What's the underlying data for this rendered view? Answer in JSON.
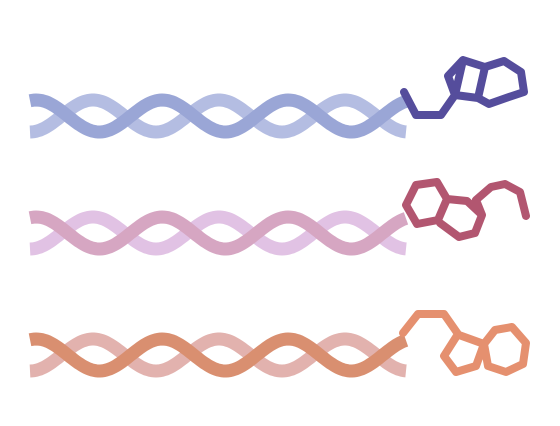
{
  "illustration": {
    "rows": [
      {
        "name": "blue",
        "strand_front_color": "#9aa6d6",
        "strand_back_color": "#b4bde2",
        "molecule_color": "#554d9c",
        "molecule_icon": "indole-icon"
      },
      {
        "name": "pink",
        "strand_front_color": "#d6a6c2",
        "strand_back_color": "#e1c2e4",
        "molecule_color": "#b25670",
        "molecule_icon": "indole-icon"
      },
      {
        "name": "orange",
        "strand_front_color": "#d98f70",
        "strand_back_color": "#e2b2ae",
        "molecule_color": "#e5906f",
        "molecule_icon": "indole-icon"
      }
    ]
  }
}
